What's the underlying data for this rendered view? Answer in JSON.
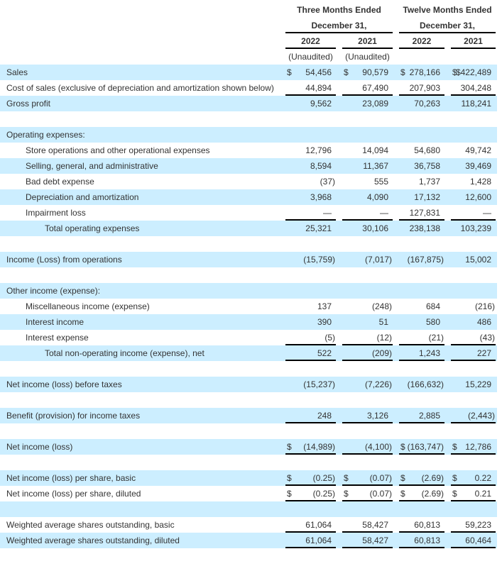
{
  "header": {
    "three_months": "Three Months Ended",
    "twelve_months": "Twelve Months Ended",
    "period_end": "December 31,",
    "years": [
      "2022",
      "2021",
      "2022",
      "2021"
    ],
    "unaudited": [
      "(Unaudited)",
      "(Unaudited)",
      "",
      ""
    ]
  },
  "colors": {
    "band": "#cceeff",
    "text": "#333333"
  },
  "rows": [
    {
      "label": "Sales",
      "indent": 0,
      "dollar": [
        true,
        true,
        true,
        true
      ],
      "values": [
        "54,456",
        "90,579",
        "278,166",
        "$422,489"
      ]
    },
    {
      "label": "Cost of sales (exclusive of depreciation and amortization shown below)",
      "indent": 0,
      "values": [
        "44,894",
        "67,490",
        "207,903",
        "304,248"
      ],
      "rule_below": true
    },
    {
      "label": "Gross profit",
      "indent": 0,
      "values": [
        "9,562",
        "23,089",
        "70,263",
        "118,241"
      ]
    },
    {
      "label": "",
      "blank": true
    },
    {
      "label": "Operating expenses:",
      "indent": 0
    },
    {
      "label": "Store operations and other operational expenses",
      "indent": 1,
      "values": [
        "12,796",
        "14,094",
        "54,680",
        "49,742"
      ]
    },
    {
      "label": "Selling, general, and administrative",
      "indent": 1,
      "values": [
        "8,594",
        "11,367",
        "36,758",
        "39,469"
      ]
    },
    {
      "label": "Bad debt expense",
      "indent": 1,
      "values": [
        "(37)",
        "555",
        "1,737",
        "1,428"
      ]
    },
    {
      "label": "Depreciation and amortization",
      "indent": 1,
      "values": [
        "3,968",
        "4,090",
        "17,132",
        "12,600"
      ]
    },
    {
      "label": "Impairment loss",
      "indent": 1,
      "values": [
        "—",
        "—",
        "127,831",
        "—"
      ],
      "rule_below": true
    },
    {
      "label": "Total operating expenses",
      "indent": 2,
      "values": [
        "25,321",
        "30,106",
        "238,138",
        "103,239"
      ]
    },
    {
      "label": "",
      "blank": true
    },
    {
      "label": "Income (Loss) from operations",
      "indent": 0,
      "values": [
        "(15,759)",
        "(7,017)",
        "(167,875)",
        "15,002"
      ]
    },
    {
      "label": "",
      "blank": true
    },
    {
      "label": "Other income (expense):",
      "indent": 0
    },
    {
      "label": "Miscellaneous income (expense)",
      "indent": 1,
      "values": [
        "137",
        "(248)",
        "684",
        "(216)"
      ]
    },
    {
      "label": "Interest income",
      "indent": 1,
      "values": [
        "390",
        "51",
        "580",
        "486"
      ]
    },
    {
      "label": "Interest expense",
      "indent": 1,
      "values": [
        "(5)",
        "(12)",
        "(21)",
        "(43)"
      ],
      "rule_below": true
    },
    {
      "label": "Total non-operating income (expense), net",
      "indent": 2,
      "values": [
        "522",
        "(209)",
        "1,243",
        "227"
      ],
      "rule_below": true
    },
    {
      "label": "",
      "blank": true
    },
    {
      "label": "Net income (loss) before taxes",
      "indent": 0,
      "values": [
        "(15,237)",
        "(7,226)",
        "(166,632)",
        "15,229"
      ]
    },
    {
      "label": "",
      "blank": true
    },
    {
      "label": "Benefit (provision) for income taxes",
      "indent": 0,
      "values": [
        "248",
        "3,126",
        "2,885",
        "(2,443)"
      ],
      "rule_below": true
    },
    {
      "label": "",
      "blank": true
    },
    {
      "label": "Net income (loss)",
      "indent": 0,
      "dollar": [
        true,
        false,
        true,
        true
      ],
      "values": [
        "(14,989)",
        "(4,100)",
        "(163,747)",
        "12,786"
      ],
      "rule_below": true
    },
    {
      "label": "",
      "blank": true
    },
    {
      "label": "Net income (loss) per share, basic",
      "indent": 0,
      "dollar": [
        true,
        true,
        true,
        true
      ],
      "values": [
        "(0.25)",
        "(0.07)",
        "(2.69)",
        "0.22"
      ],
      "rule_below": true
    },
    {
      "label": "Net income (loss) per share, diluted",
      "indent": 0,
      "dollar": [
        true,
        true,
        true,
        true
      ],
      "values": [
        "(0.25)",
        "(0.07)",
        "(2.69)",
        "0.21"
      ],
      "rule_below": true
    },
    {
      "label": "",
      "blank": true
    },
    {
      "label": "Weighted average shares outstanding, basic",
      "indent": 0,
      "values": [
        "61,064",
        "58,427",
        "60,813",
        "59,223"
      ],
      "rule_below": true
    },
    {
      "label": "Weighted average shares outstanding, diluted",
      "indent": 0,
      "values": [
        "61,064",
        "58,427",
        "60,813",
        "60,464"
      ],
      "rule_below": true
    }
  ]
}
